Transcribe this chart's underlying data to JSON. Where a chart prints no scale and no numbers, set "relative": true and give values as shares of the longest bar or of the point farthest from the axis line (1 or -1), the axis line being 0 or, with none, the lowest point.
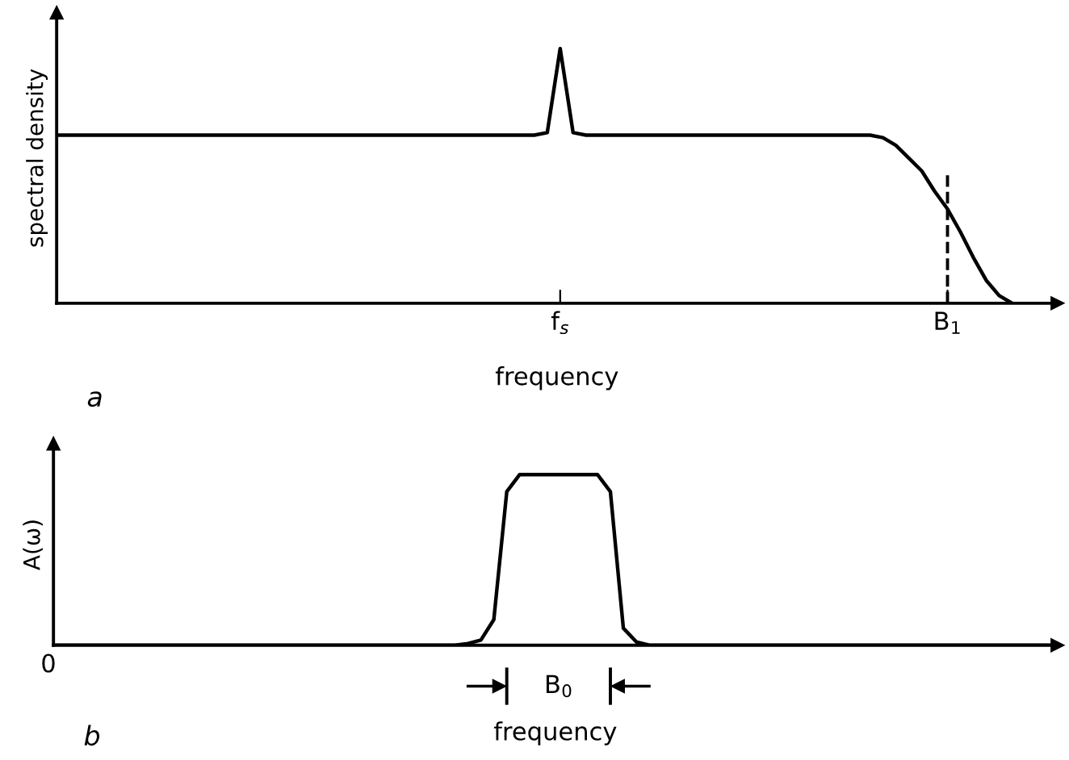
{
  "chart_data": [
    {
      "type": "line",
      "relative": true,
      "ylabel": "spectral density",
      "xlabel": "frequency",
      "categories": [
        null,
        null,
        null,
        null,
        null,
        null,
        null,
        null,
        null,
        null,
        null,
        null,
        null,
        null,
        null,
        null,
        null,
        null,
        null,
        null,
        null,
        null,
        null,
        null,
        null,
        null,
        null,
        null,
        null,
        null,
        null,
        null,
        null,
        null,
        null,
        null,
        null,
        null,
        null,
        "f$_{s}$",
        null,
        null,
        null,
        null,
        null,
        null,
        null,
        null,
        null,
        null,
        null,
        null,
        null,
        null,
        null,
        null,
        null,
        null,
        null,
        null,
        null,
        null,
        null,
        null,
        null,
        null,
        null,
        null,
        null,
        "B$_{1}$",
        null,
        null,
        null,
        null,
        null,
        null,
        null,
        null
      ],
      "series": [
        {
          "color": "#000000",
          "values": [
            0.66,
            0.66,
            0.66,
            0.66,
            0.66,
            0.66,
            0.66,
            0.66,
            0.66,
            0.66,
            0.66,
            0.66,
            0.66,
            0.66,
            0.66,
            0.66,
            0.66,
            0.66,
            0.66,
            0.66,
            0.66,
            0.66,
            0.66,
            0.66,
            0.66,
            0.66,
            0.66,
            0.66,
            0.66,
            0.66,
            0.66,
            0.66,
            0.66,
            0.66,
            0.66,
            0.66,
            0.66,
            0.66,
            0.67,
            1.0,
            0.67,
            0.66,
            0.66,
            0.66,
            0.66,
            0.66,
            0.66,
            0.66,
            0.66,
            0.66,
            0.66,
            0.66,
            0.66,
            0.66,
            0.66,
            0.66,
            0.66,
            0.66,
            0.66,
            0.66,
            0.66,
            0.66,
            0.66,
            0.66,
            0.65,
            0.62,
            0.57,
            0.52,
            0.44,
            0.37,
            0.28,
            0.18,
            0.09,
            0.03,
            0.0,
            null,
            null,
            null
          ]
        }
      ],
      "ref_lines": [
        {
          "axis": "x",
          "value": "B$_{1}$",
          "line_style": "dashed",
          "color": "#000000"
        }
      ],
      "line_style": "solid",
      "grid": false,
      "annotations": [
        "a"
      ]
    },
    {
      "type": "line",
      "relative": true,
      "ylabel": "A(ω)",
      "xlabel": "frequency",
      "categories": [
        null,
        null,
        null,
        null,
        null,
        null,
        null,
        null,
        null,
        null,
        null,
        null,
        null,
        null,
        null,
        null,
        null,
        null,
        null,
        null,
        null,
        null,
        null,
        null,
        null,
        null,
        null,
        null,
        null,
        null,
        null,
        null,
        null,
        null,
        null,
        null,
        null,
        null,
        null,
        null,
        null,
        null,
        null,
        null,
        null,
        null,
        null,
        null,
        null,
        null,
        null,
        null,
        null,
        null,
        null,
        null,
        null,
        null,
        null,
        null,
        null,
        null,
        null,
        null,
        null,
        null,
        null,
        null,
        null,
        null,
        null,
        null,
        null,
        null,
        null,
        null,
        null,
        null
      ],
      "series": [
        {
          "color": "#000000",
          "values": [
            0,
            0,
            0,
            0,
            0,
            0,
            0,
            0,
            0,
            0,
            0,
            0,
            0,
            0,
            0,
            0,
            0,
            0,
            0,
            0,
            0,
            0,
            0,
            0,
            0,
            0,
            0,
            0,
            0,
            0,
            0,
            0,
            0.01,
            0.03,
            0.15,
            0.9,
            1.0,
            1.0,
            1.0,
            1.0,
            1.0,
            1.0,
            1.0,
            0.9,
            0.1,
            0.02,
            0,
            0,
            0,
            0,
            0,
            0,
            0,
            0,
            0,
            0,
            0,
            0,
            0,
            0,
            0,
            0,
            0,
            0,
            0,
            0,
            0,
            0,
            0,
            0,
            0,
            0,
            0,
            0,
            0,
            0,
            0,
            0
          ]
        }
      ],
      "line_style": "solid",
      "grid": false,
      "annotations": [
        "B$_{0}$",
        "0",
        "b"
      ]
    }
  ]
}
